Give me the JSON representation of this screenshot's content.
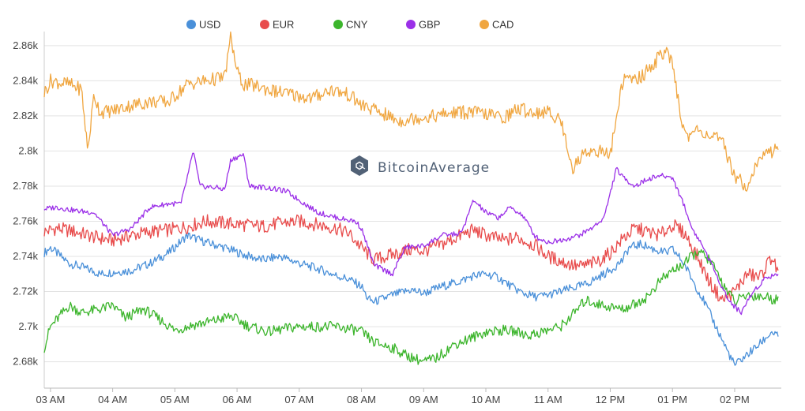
{
  "chart_data": {
    "type": "line",
    "title": "",
    "xlabel": "",
    "ylabel": "",
    "x_ticks": [
      "03 AM",
      "04 AM",
      "05 AM",
      "06 AM",
      "07 AM",
      "08 AM",
      "09 AM",
      "10 AM",
      "11 AM",
      "12 PM",
      "01 PM",
      "02 PM"
    ],
    "y_ticks": [
      "2.68k",
      "2.7k",
      "2.72k",
      "2.74k",
      "2.76k",
      "2.78k",
      "2.8k",
      "2.82k",
      "2.84k",
      "2.86k"
    ],
    "y_tick_values": [
      2680,
      2700,
      2720,
      2740,
      2760,
      2780,
      2800,
      2820,
      2840,
      2860
    ],
    "ylim": [
      2665,
      2868
    ],
    "xlim": [
      2.9,
      14.75
    ],
    "grid": true,
    "legend_position": "top",
    "watermark": "BitcoinAverage",
    "series": [
      {
        "name": "USD",
        "color": "#4a90d9",
        "noise": 2.5,
        "x": [
          2.9,
          3.0,
          3.3,
          3.5,
          3.8,
          4.0,
          4.3,
          4.6,
          4.9,
          5.2,
          5.5,
          5.8,
          6.1,
          6.4,
          6.7,
          7.0,
          7.3,
          7.6,
          7.8,
          8.0,
          8.1,
          8.2,
          8.5,
          8.8,
          9.0,
          9.3,
          9.6,
          9.8,
          10.0,
          10.2,
          10.4,
          10.6,
          10.8,
          11.0,
          11.3,
          11.6,
          11.8,
          12.0,
          12.2,
          12.3,
          12.5,
          12.7,
          12.9,
          13.0,
          13.1,
          13.2,
          13.3,
          13.5,
          13.7,
          13.9,
          14.0,
          14.2,
          14.4,
          14.6,
          14.7
        ],
        "y": [
          2742,
          2745,
          2736,
          2734,
          2730,
          2731,
          2732,
          2736,
          2742,
          2752,
          2748,
          2745,
          2741,
          2738,
          2740,
          2736,
          2733,
          2729,
          2727,
          2723,
          2716,
          2714,
          2718,
          2721,
          2719,
          2723,
          2726,
          2729,
          2730,
          2728,
          2723,
          2719,
          2717,
          2718,
          2721,
          2724,
          2728,
          2732,
          2738,
          2745,
          2747,
          2744,
          2742,
          2744,
          2740,
          2735,
          2728,
          2715,
          2700,
          2685,
          2678,
          2684,
          2690,
          2697,
          2694
        ]
      },
      {
        "name": "EUR",
        "color": "#e84c4c",
        "noise": 4,
        "x": [
          2.9,
          3.1,
          3.4,
          3.7,
          4.0,
          4.3,
          4.6,
          4.9,
          5.2,
          5.5,
          5.8,
          6.1,
          6.4,
          6.7,
          7.0,
          7.3,
          7.6,
          7.8,
          8.0,
          8.2,
          8.5,
          8.8,
          9.0,
          9.3,
          9.6,
          9.8,
          10.0,
          10.3,
          10.5,
          10.8,
          11.0,
          11.3,
          11.5,
          11.8,
          12.0,
          12.2,
          12.4,
          12.6,
          12.8,
          13.0,
          13.2,
          13.4,
          13.6,
          13.8,
          14.0,
          14.2,
          14.4,
          14.6,
          14.7
        ],
        "y": [
          2754,
          2756,
          2754,
          2751,
          2749,
          2752,
          2754,
          2755,
          2757,
          2760,
          2759,
          2758,
          2757,
          2759,
          2760,
          2758,
          2756,
          2753,
          2745,
          2738,
          2741,
          2744,
          2743,
          2747,
          2752,
          2755,
          2752,
          2749,
          2751,
          2746,
          2740,
          2736,
          2734,
          2737,
          2742,
          2750,
          2756,
          2754,
          2752,
          2758,
          2753,
          2740,
          2725,
          2715,
          2720,
          2730,
          2728,
          2740,
          2730
        ]
      },
      {
        "name": "CNY",
        "color": "#3cb52c",
        "noise": 3,
        "x": [
          2.9,
          3.0,
          3.3,
          3.5,
          3.8,
          4.0,
          4.2,
          4.5,
          4.8,
          5.0,
          5.3,
          5.6,
          5.9,
          6.2,
          6.5,
          6.8,
          7.0,
          7.3,
          7.6,
          7.9,
          8.0,
          8.2,
          8.5,
          8.7,
          9.0,
          9.2,
          9.5,
          9.8,
          10.0,
          10.3,
          10.5,
          10.7,
          10.9,
          11.0,
          11.2,
          11.4,
          11.6,
          11.9,
          12.2,
          12.4,
          12.6,
          12.8,
          13.0,
          13.2,
          13.4,
          13.6,
          13.8,
          14.0,
          14.2,
          14.5,
          14.7
        ],
        "y": [
          2688,
          2700,
          2712,
          2708,
          2710,
          2712,
          2705,
          2710,
          2703,
          2698,
          2701,
          2703,
          2706,
          2700,
          2697,
          2699,
          2700,
          2700,
          2700,
          2698,
          2697,
          2691,
          2688,
          2684,
          2680,
          2682,
          2690,
          2694,
          2697,
          2698,
          2697,
          2695,
          2697,
          2698,
          2700,
          2707,
          2715,
          2712,
          2710,
          2713,
          2717,
          2726,
          2732,
          2736,
          2743,
          2738,
          2725,
          2714,
          2718,
          2717,
          2715
        ]
      },
      {
        "name": "GBP",
        "color": "#9b30e8",
        "noise": 1.5,
        "x": [
          2.9,
          3.1,
          3.4,
          3.7,
          4.0,
          4.3,
          4.6,
          4.9,
          5.1,
          5.2,
          5.3,
          5.4,
          5.7,
          5.8,
          5.9,
          6.1,
          6.2,
          6.5,
          6.8,
          7.0,
          7.3,
          7.6,
          7.9,
          8.0,
          8.2,
          8.5,
          8.7,
          9.0,
          9.3,
          9.6,
          9.7,
          9.8,
          10.0,
          10.2,
          10.4,
          10.6,
          10.8,
          11.0,
          11.3,
          11.5,
          11.7,
          11.9,
          12.0,
          12.1,
          12.2,
          12.4,
          12.6,
          12.8,
          13.0,
          13.2,
          13.3,
          13.5,
          13.7,
          13.9,
          14.1,
          14.3,
          14.5,
          14.7
        ],
        "y": [
          2767,
          2768,
          2766,
          2765,
          2752,
          2756,
          2768,
          2770,
          2770,
          2785,
          2800,
          2780,
          2779,
          2778,
          2795,
          2798,
          2780,
          2779,
          2777,
          2772,
          2765,
          2762,
          2760,
          2756,
          2735,
          2730,
          2745,
          2746,
          2752,
          2753,
          2762,
          2772,
          2765,
          2762,
          2768,
          2763,
          2751,
          2748,
          2750,
          2752,
          2756,
          2762,
          2776,
          2790,
          2785,
          2780,
          2784,
          2786,
          2785,
          2768,
          2757,
          2745,
          2730,
          2715,
          2708,
          2720,
          2728,
          2730
        ]
      },
      {
        "name": "CAD",
        "color": "#f0a640",
        "noise": 4,
        "x": [
          2.9,
          3.0,
          3.3,
          3.5,
          3.6,
          3.7,
          3.8,
          4.0,
          4.3,
          4.6,
          4.9,
          5.2,
          5.5,
          5.8,
          5.9,
          6.0,
          6.1,
          6.3,
          6.6,
          6.9,
          7.2,
          7.5,
          7.8,
          8.0,
          8.3,
          8.6,
          8.9,
          9.2,
          9.5,
          9.8,
          10.0,
          10.3,
          10.5,
          10.8,
          11.0,
          11.2,
          11.4,
          11.6,
          11.8,
          12.0,
          12.2,
          12.5,
          12.7,
          12.9,
          13.0,
          13.2,
          13.4,
          13.6,
          13.8,
          14.0,
          14.2,
          14.4,
          14.6,
          14.7
        ],
        "y": [
          2833,
          2840,
          2838,
          2835,
          2800,
          2832,
          2822,
          2823,
          2826,
          2828,
          2828,
          2838,
          2840,
          2842,
          2865,
          2845,
          2838,
          2837,
          2834,
          2832,
          2830,
          2835,
          2832,
          2826,
          2822,
          2817,
          2819,
          2820,
          2822,
          2822,
          2821,
          2819,
          2824,
          2822,
          2822,
          2818,
          2790,
          2800,
          2800,
          2798,
          2840,
          2842,
          2850,
          2858,
          2848,
          2808,
          2812,
          2809,
          2805,
          2786,
          2780,
          2796,
          2800,
          2802
        ]
      }
    ]
  }
}
